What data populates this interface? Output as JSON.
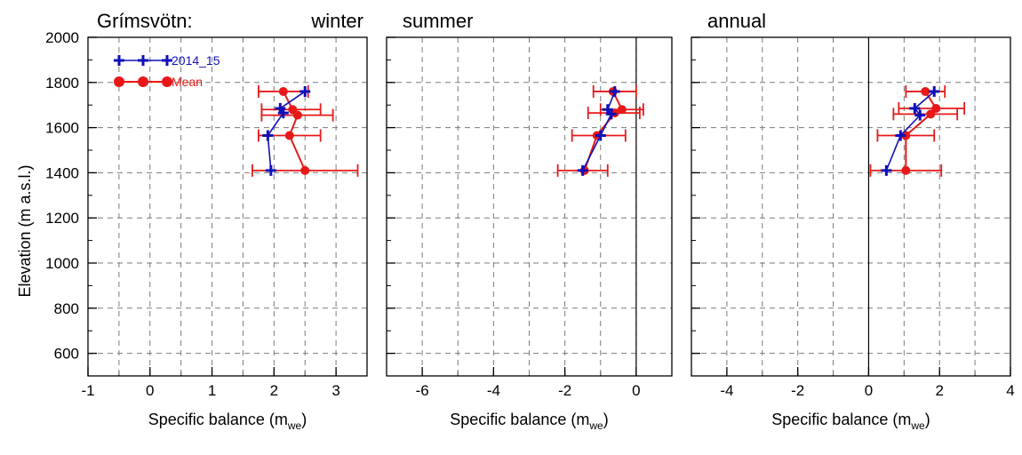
{
  "figure": {
    "ylabel": "Elevation (m a.s.l.)",
    "series_names": [
      "2014_15",
      "Mean"
    ],
    "colors": {
      "obs": "#1010b8",
      "mean": "#e81818"
    }
  },
  "chart_data": [
    {
      "type": "line",
      "title_left": "Grímsvötn:",
      "title": "winter",
      "xlabel": "Specific balance (m",
      "xlabel_sub": "we",
      "xlabel_close": ")",
      "xlim": [
        -1,
        3.5
      ],
      "ylim": [
        500,
        2000
      ],
      "xticks": [
        -1,
        0,
        1,
        2,
        3
      ],
      "xtick_labels": [
        "-1",
        "0",
        "1",
        "2",
        "3"
      ],
      "yticks": [
        600,
        800,
        1000,
        1200,
        1400,
        1600,
        1800,
        2000
      ],
      "ytick_labels": [
        "600",
        "800",
        "1000",
        "1200",
        "1400",
        "1600",
        "1800",
        "2000"
      ],
      "zero_line": false,
      "show_legend": true,
      "legend_position": "top-left",
      "series": [
        {
          "name": "2014_15",
          "x": [
            2.5,
            2.1,
            2.15,
            1.9,
            1.95
          ],
          "y": [
            1760,
            1685,
            1665,
            1565,
            1410
          ]
        },
        {
          "name": "Mean",
          "x": [
            2.15,
            2.3,
            2.38,
            2.25,
            2.5
          ],
          "y": [
            1760,
            1680,
            1655,
            1565,
            1410
          ],
          "err_lo": [
            1.75,
            1.8,
            1.8,
            1.75,
            1.65
          ],
          "err_hi": [
            2.55,
            2.75,
            2.95,
            2.75,
            3.35
          ]
        }
      ]
    },
    {
      "type": "line",
      "title": "summer",
      "xlabel": "Specific balance (m",
      "xlabel_sub": "we",
      "xlabel_close": ")",
      "xlim": [
        -7,
        1
      ],
      "ylim": [
        500,
        2000
      ],
      "xticks": [
        -6,
        -4,
        -2,
        0
      ],
      "xtick_labels": [
        "-6",
        "-4",
        "-2",
        "0"
      ],
      "yticks": [
        600,
        800,
        1000,
        1200,
        1400,
        1600,
        1800,
        2000
      ],
      "zero_line": true,
      "show_legend": false,
      "series": [
        {
          "name": "2014_15",
          "x": [
            -0.6,
            -0.8,
            -0.7,
            -1.0,
            -1.5
          ],
          "y": [
            1760,
            1680,
            1660,
            1565,
            1410
          ]
        },
        {
          "name": "Mean",
          "x": [
            -0.65,
            -0.4,
            -0.6,
            -1.1,
            -1.45
          ],
          "y": [
            1760,
            1680,
            1665,
            1565,
            1410
          ],
          "err_lo": [
            -1.2,
            -1.0,
            -1.35,
            -1.8,
            -2.2
          ],
          "err_hi": [
            0.0,
            0.2,
            0.1,
            -0.3,
            -0.8
          ]
        }
      ]
    },
    {
      "type": "line",
      "title": "annual",
      "xlabel": "Specific balance (m",
      "xlabel_sub": "we",
      "xlabel_close": ")",
      "xlim": [
        -5,
        4
      ],
      "ylim": [
        500,
        2000
      ],
      "xticks": [
        -4,
        -2,
        0,
        2,
        4
      ],
      "xtick_labels": [
        "-4",
        "-2",
        "0",
        "2",
        "4"
      ],
      "yticks": [
        600,
        800,
        1000,
        1200,
        1400,
        1600,
        1800,
        2000
      ],
      "zero_line": true,
      "show_legend": false,
      "series": [
        {
          "name": "2014_15",
          "x": [
            1.85,
            1.3,
            1.45,
            0.9,
            0.5
          ],
          "y": [
            1760,
            1685,
            1655,
            1565,
            1410
          ]
        },
        {
          "name": "Mean",
          "x": [
            1.6,
            1.9,
            1.75,
            1.05,
            1.05
          ],
          "y": [
            1760,
            1685,
            1660,
            1565,
            1410
          ],
          "err_lo": [
            1.05,
            0.85,
            0.7,
            0.25,
            0.05
          ],
          "err_hi": [
            2.15,
            2.7,
            2.5,
            1.85,
            2.05
          ]
        }
      ]
    }
  ]
}
